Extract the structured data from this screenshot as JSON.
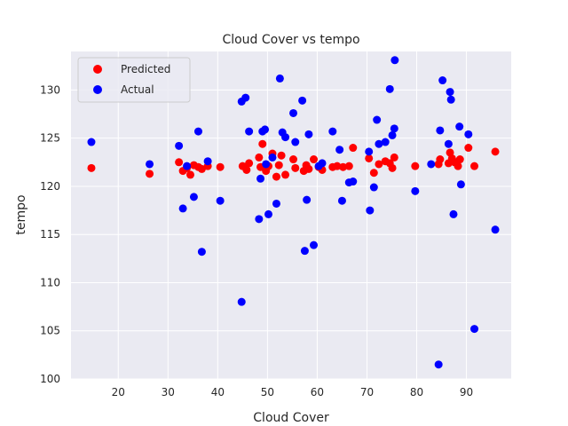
{
  "chart_data": {
    "type": "scatter",
    "title": "Cloud Cover vs tempo",
    "xlabel": "Cloud Cover",
    "ylabel": "tempo",
    "xlim": [
      10.5,
      99
    ],
    "ylim": [
      100,
      134
    ],
    "xticks": [
      20,
      30,
      40,
      50,
      60,
      70,
      80,
      90
    ],
    "yticks": [
      100,
      105,
      110,
      115,
      120,
      125,
      130
    ],
    "grid": true,
    "legend_position": "top-left",
    "background": "#eaeaf2",
    "series": [
      {
        "name": "Predicted",
        "color": "#ff0000",
        "points": [
          [
            14.6,
            121.9
          ],
          [
            26.3,
            121.3
          ],
          [
            32.2,
            122.5
          ],
          [
            33.0,
            121.6
          ],
          [
            33.8,
            121.9
          ],
          [
            34.5,
            121.2
          ],
          [
            35.2,
            122.2
          ],
          [
            36.1,
            122.0
          ],
          [
            36.8,
            121.8
          ],
          [
            38.0,
            122.1
          ],
          [
            40.5,
            122.0
          ],
          [
            45.0,
            122.1
          ],
          [
            45.8,
            121.7
          ],
          [
            46.3,
            122.4
          ],
          [
            48.3,
            123.0
          ],
          [
            48.6,
            122.0
          ],
          [
            49.0,
            124.4
          ],
          [
            49.7,
            121.6
          ],
          [
            50.2,
            122.1
          ],
          [
            51.0,
            123.4
          ],
          [
            51.8,
            121.0
          ],
          [
            52.3,
            122.2
          ],
          [
            52.8,
            123.2
          ],
          [
            53.6,
            121.2
          ],
          [
            55.2,
            122.8
          ],
          [
            55.6,
            121.9
          ],
          [
            57.3,
            121.6
          ],
          [
            57.8,
            122.2
          ],
          [
            58.3,
            121.8
          ],
          [
            59.3,
            122.8
          ],
          [
            60.3,
            122.0
          ],
          [
            61.0,
            121.7
          ],
          [
            63.1,
            122.0
          ],
          [
            64.0,
            122.1
          ],
          [
            65.2,
            122.0
          ],
          [
            66.4,
            122.1
          ],
          [
            67.2,
            124.0
          ],
          [
            70.4,
            122.9
          ],
          [
            71.4,
            121.4
          ],
          [
            72.4,
            122.3
          ],
          [
            73.7,
            122.6
          ],
          [
            74.6,
            122.4
          ],
          [
            75.1,
            121.9
          ],
          [
            75.5,
            123.0
          ],
          [
            79.7,
            122.1
          ],
          [
            84.4,
            122.3
          ],
          [
            84.7,
            122.8
          ],
          [
            86.4,
            122.4
          ],
          [
            86.7,
            123.5
          ],
          [
            87.1,
            122.9
          ],
          [
            87.6,
            122.5
          ],
          [
            88.3,
            122.1
          ],
          [
            88.7,
            122.8
          ],
          [
            90.4,
            124.0
          ],
          [
            91.6,
            122.1
          ],
          [
            95.8,
            123.6
          ]
        ]
      },
      {
        "name": "Actual",
        "color": "#0000ff",
        "points": [
          [
            14.6,
            124.6
          ],
          [
            26.3,
            122.3
          ],
          [
            32.2,
            124.2
          ],
          [
            33.0,
            117.7
          ],
          [
            33.8,
            122.1
          ],
          [
            35.2,
            118.9
          ],
          [
            36.1,
            125.7
          ],
          [
            36.8,
            113.2
          ],
          [
            38.0,
            122.6
          ],
          [
            40.5,
            118.5
          ],
          [
            44.8,
            128.8
          ],
          [
            44.8,
            108.0
          ],
          [
            45.6,
            129.2
          ],
          [
            46.3,
            125.7
          ],
          [
            48.3,
            116.6
          ],
          [
            48.6,
            120.8
          ],
          [
            49.0,
            125.7
          ],
          [
            49.5,
            125.9
          ],
          [
            49.7,
            122.3
          ],
          [
            50.2,
            117.1
          ],
          [
            51.0,
            123.0
          ],
          [
            51.8,
            118.2
          ],
          [
            52.5,
            131.2
          ],
          [
            53.0,
            125.6
          ],
          [
            53.6,
            125.1
          ],
          [
            55.2,
            127.6
          ],
          [
            55.6,
            124.6
          ],
          [
            57.0,
            128.9
          ],
          [
            57.5,
            113.3
          ],
          [
            57.9,
            118.6
          ],
          [
            58.3,
            125.4
          ],
          [
            59.3,
            113.9
          ],
          [
            60.3,
            122.1
          ],
          [
            61.0,
            122.4
          ],
          [
            63.1,
            125.7
          ],
          [
            64.5,
            123.8
          ],
          [
            65.0,
            118.5
          ],
          [
            66.4,
            120.4
          ],
          [
            67.2,
            120.5
          ],
          [
            70.4,
            123.6
          ],
          [
            70.6,
            117.5
          ],
          [
            71.4,
            119.9
          ],
          [
            72.0,
            126.9
          ],
          [
            72.4,
            124.4
          ],
          [
            73.7,
            124.6
          ],
          [
            74.6,
            130.1
          ],
          [
            75.1,
            125.3
          ],
          [
            75.5,
            126.0
          ],
          [
            75.6,
            133.1
          ],
          [
            79.7,
            119.5
          ],
          [
            82.9,
            122.3
          ],
          [
            84.4,
            101.5
          ],
          [
            84.7,
            125.8
          ],
          [
            85.2,
            131.0
          ],
          [
            86.4,
            124.4
          ],
          [
            86.7,
            129.8
          ],
          [
            86.9,
            129.0
          ],
          [
            87.4,
            117.1
          ],
          [
            88.6,
            126.2
          ],
          [
            88.9,
            120.2
          ],
          [
            90.4,
            125.4
          ],
          [
            91.6,
            105.2
          ],
          [
            95.8,
            115.5
          ]
        ]
      }
    ]
  }
}
